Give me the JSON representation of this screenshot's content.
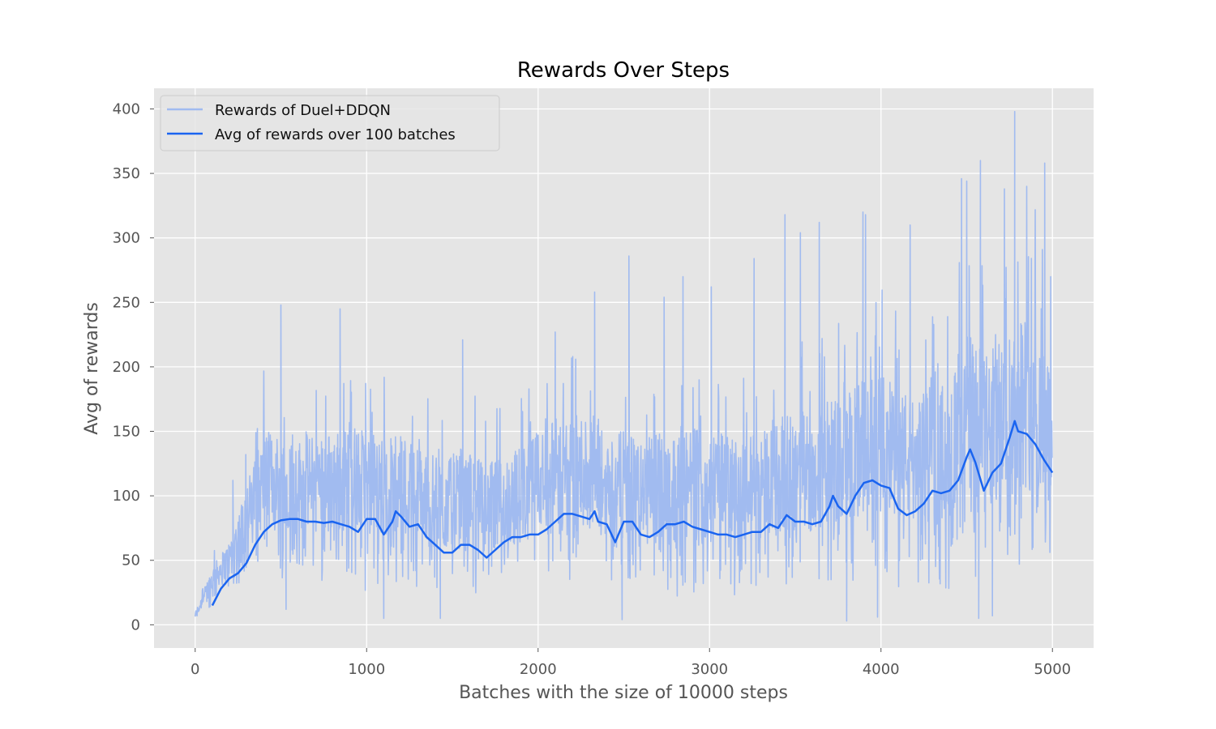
{
  "chart_data": {
    "type": "line",
    "title": "Rewards Over Steps",
    "xlabel": "Batches with the size of 10000 steps",
    "ylabel": "Avg of rewards",
    "xlim": [
      -240,
      5240
    ],
    "ylim": [
      -18,
      416
    ],
    "xticks": [
      0,
      1000,
      2000,
      3000,
      4000,
      5000
    ],
    "yticks": [
      0,
      50,
      100,
      150,
      200,
      250,
      300,
      350,
      400
    ],
    "grid": true,
    "style": "ggplot",
    "legend_placement": "upper-left",
    "colors": {
      "background": "#e5e5e5",
      "grid": "#ffffff",
      "raw_series": "#a1bbf0",
      "avg_series": "#1a64f0"
    },
    "series": [
      {
        "name": "Rewards of Duel+DDQN",
        "kind": "raw_envelope",
        "x": [
          0,
          100,
          200,
          300,
          400,
          500,
          600,
          700,
          800,
          900,
          1000,
          1100,
          1200,
          1300,
          1400,
          1500,
          1600,
          1700,
          1800,
          1900,
          2000,
          2100,
          2200,
          2300,
          2400,
          2500,
          2600,
          2700,
          2800,
          2900,
          3000,
          3100,
          3200,
          3300,
          3400,
          3500,
          3600,
          3700,
          3800,
          3900,
          4000,
          4100,
          4200,
          4300,
          4400,
          4500,
          4600,
          4700,
          4800,
          4900,
          5000
        ],
        "upper_typical": [
          10,
          45,
          65,
          110,
          150,
          150,
          145,
          150,
          150,
          155,
          150,
          145,
          150,
          140,
          130,
          130,
          135,
          125,
          130,
          140,
          150,
          160,
          160,
          170,
          150,
          150,
          145,
          150,
          150,
          155,
          150,
          150,
          145,
          155,
          160,
          165,
          165,
          175,
          180,
          190,
          195,
          185,
          180,
          180,
          190,
          230,
          210,
          220,
          250,
          240,
          210
        ],
        "lower_typical": [
          2,
          15,
          25,
          30,
          35,
          35,
          35,
          35,
          30,
          30,
          25,
          25,
          25,
          22,
          20,
          20,
          20,
          20,
          20,
          22,
          22,
          25,
          25,
          25,
          20,
          20,
          20,
          20,
          20,
          20,
          20,
          22,
          20,
          20,
          22,
          22,
          22,
          22,
          22,
          25,
          25,
          22,
          22,
          22,
          22,
          30,
          25,
          28,
          30,
          30,
          40
        ],
        "peaks": [
          {
            "x": 220,
            "y": 112
          },
          {
            "x": 295,
            "y": 132
          },
          {
            "x": 500,
            "y": 248
          },
          {
            "x": 845,
            "y": 245
          },
          {
            "x": 1560,
            "y": 221
          },
          {
            "x": 2100,
            "y": 227
          },
          {
            "x": 2330,
            "y": 258
          },
          {
            "x": 2530,
            "y": 286
          },
          {
            "x": 2735,
            "y": 254
          },
          {
            "x": 2845,
            "y": 270
          },
          {
            "x": 3010,
            "y": 262
          },
          {
            "x": 3260,
            "y": 284
          },
          {
            "x": 3440,
            "y": 318
          },
          {
            "x": 3530,
            "y": 304
          },
          {
            "x": 3640,
            "y": 312
          },
          {
            "x": 3895,
            "y": 320
          },
          {
            "x": 3910,
            "y": 318
          },
          {
            "x": 4170,
            "y": 310
          },
          {
            "x": 4470,
            "y": 346
          },
          {
            "x": 4500,
            "y": 344
          },
          {
            "x": 4580,
            "y": 360
          },
          {
            "x": 4720,
            "y": 338
          },
          {
            "x": 4780,
            "y": 398
          },
          {
            "x": 4850,
            "y": 340
          },
          {
            "x": 4955,
            "y": 358
          },
          {
            "x": 4990,
            "y": 270
          }
        ],
        "troughs": [
          {
            "x": 530,
            "y": 12
          },
          {
            "x": 1100,
            "y": 5
          },
          {
            "x": 1430,
            "y": 5
          },
          {
            "x": 2490,
            "y": 4
          },
          {
            "x": 3800,
            "y": 3
          },
          {
            "x": 3980,
            "y": 6
          },
          {
            "x": 4570,
            "y": 5
          },
          {
            "x": 4650,
            "y": 7
          }
        ]
      },
      {
        "name": "Avg of rewards over 100 batches",
        "kind": "moving_average",
        "x": [
          100,
          150,
          200,
          250,
          300,
          350,
          400,
          450,
          500,
          550,
          600,
          650,
          700,
          750,
          800,
          850,
          900,
          950,
          1000,
          1050,
          1100,
          1150,
          1170,
          1200,
          1250,
          1300,
          1350,
          1400,
          1450,
          1500,
          1550,
          1600,
          1650,
          1700,
          1750,
          1800,
          1850,
          1900,
          1950,
          2000,
          2050,
          2100,
          2150,
          2200,
          2250,
          2300,
          2330,
          2350,
          2400,
          2450,
          2500,
          2550,
          2600,
          2650,
          2700,
          2750,
          2800,
          2850,
          2900,
          2950,
          3000,
          3050,
          3100,
          3150,
          3200,
          3250,
          3300,
          3350,
          3400,
          3450,
          3500,
          3550,
          3600,
          3650,
          3700,
          3720,
          3750,
          3800,
          3850,
          3900,
          3950,
          4000,
          4050,
          4100,
          4150,
          4200,
          4250,
          4300,
          4350,
          4400,
          4450,
          4500,
          4520,
          4550,
          4600,
          4650,
          4700,
          4750,
          4780,
          4800,
          4850,
          4900,
          4950,
          5000
        ],
        "values": [
          15,
          28,
          36,
          40,
          48,
          62,
          72,
          78,
          81,
          82,
          82,
          80,
          80,
          79,
          80,
          78,
          76,
          72,
          82,
          82,
          70,
          80,
          88,
          84,
          76,
          78,
          68,
          62,
          56,
          56,
          62,
          62,
          58,
          52,
          58,
          64,
          68,
          68,
          70,
          70,
          74,
          80,
          86,
          86,
          84,
          82,
          88,
          80,
          78,
          64,
          80,
          80,
          70,
          68,
          72,
          78,
          78,
          80,
          76,
          74,
          72,
          70,
          70,
          68,
          70,
          72,
          72,
          78,
          75,
          85,
          80,
          80,
          78,
          80,
          92,
          100,
          92,
          86,
          100,
          110,
          112,
          108,
          106,
          90,
          85,
          88,
          94,
          104,
          102,
          104,
          112,
          130,
          136,
          126,
          104,
          118,
          125,
          145,
          158,
          150,
          148,
          140,
          128,
          118
        ]
      }
    ]
  }
}
